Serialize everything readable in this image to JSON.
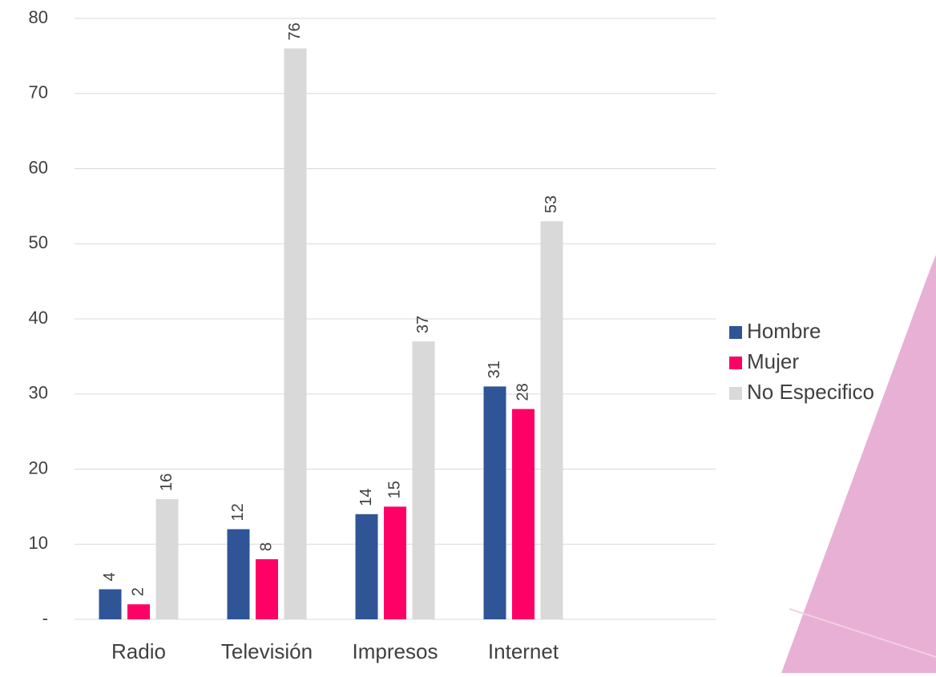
{
  "chart_data": {
    "type": "bar",
    "categories": [
      "Radio",
      "Televisión",
      "Impresos",
      "Internet",
      null
    ],
    "series": [
      {
        "name": "Hombre",
        "color": "#2f5597",
        "values": [
          4,
          12,
          14,
          31,
          null
        ]
      },
      {
        "name": "Mujer",
        "color": "#ff0066",
        "values": [
          2,
          8,
          15,
          28,
          null
        ]
      },
      {
        "name": "No Especifico",
        "color": "#d9d9d9",
        "values": [
          16,
          76,
          37,
          53,
          null
        ]
      }
    ],
    "ylim": [
      0,
      80
    ],
    "yticks": [
      {
        "value": 0,
        "label": "-"
      },
      10,
      20,
      30,
      40,
      50,
      60,
      70,
      80
    ],
    "grid": true,
    "legend": "right"
  }
}
